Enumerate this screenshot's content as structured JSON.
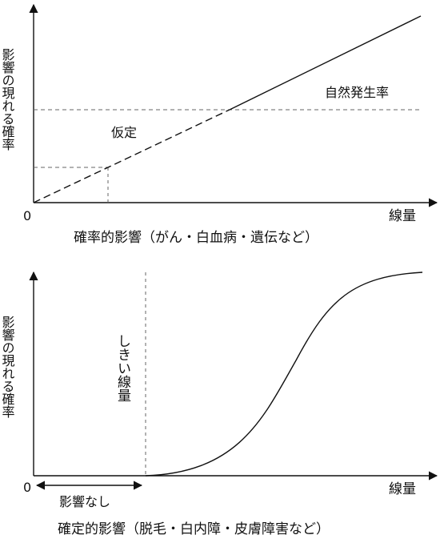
{
  "top": {
    "y_label": "影響の現れる確率",
    "x_label": "線量",
    "origin": "0",
    "label_natural": "自然発生率",
    "label_assumed": "仮定",
    "caption": "確率的影響（がん・白血病・遺伝など）"
  },
  "bottom": {
    "y_label": "影響の現れる確率",
    "x_label": "線量",
    "origin": "0",
    "threshold_label": "しきい線量",
    "no_effect_label": "影響なし",
    "caption": "確定的影響（脱毛・白内障・皮膚障害など）"
  }
}
